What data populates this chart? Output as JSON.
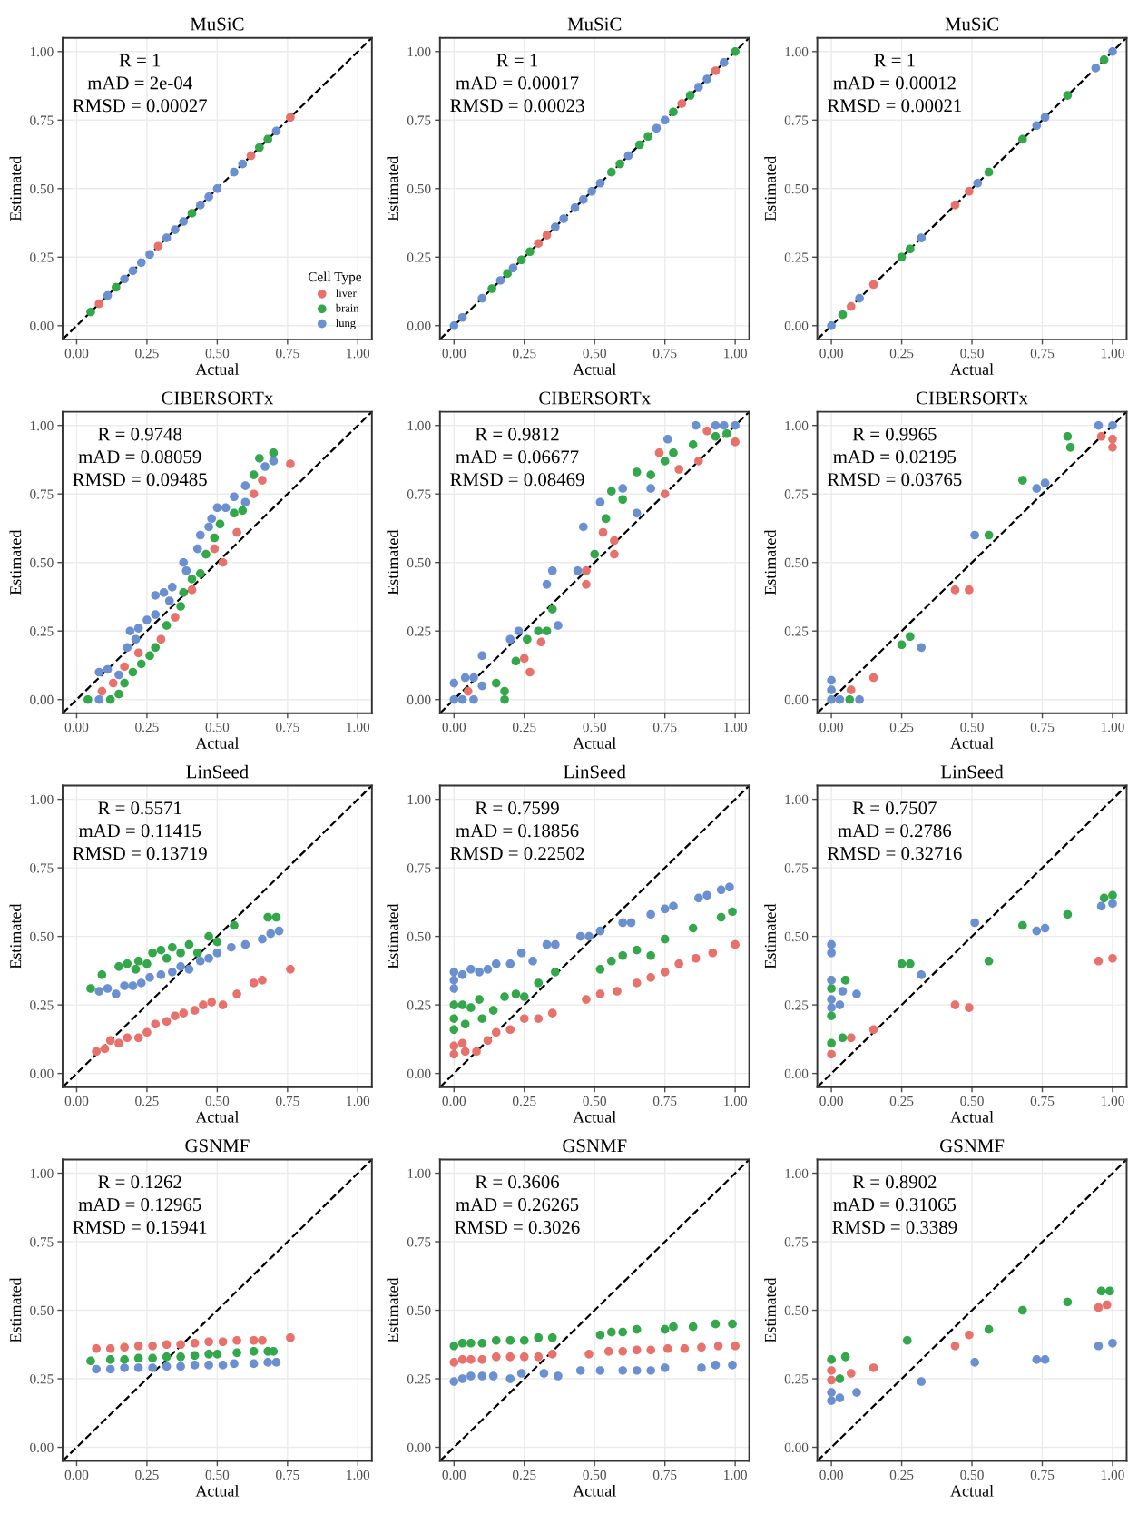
{
  "chart_data": [
    {
      "type": "scatter",
      "title": "MuSiC",
      "xlabel": "Actual",
      "ylabel": "Estimated",
      "annotations": [
        "R = 1",
        "mAD = 2e-04",
        "RMSD = 0.00027"
      ],
      "xlim": [
        -0.05,
        1.05
      ],
      "ylim": [
        -0.05,
        1.05
      ],
      "xticks": [
        {
          "value": 0,
          "label": "0.00"
        },
        {
          "value": 0.25,
          "label": "0.25"
        },
        {
          "value": 0.5,
          "label": "0.50"
        },
        {
          "value": 0.75,
          "label": "0.75"
        },
        {
          "value": 1,
          "label": "1.00"
        }
      ],
      "yticks": [
        {
          "value": 0,
          "label": "0.00"
        },
        {
          "value": 0.25,
          "label": "0.25"
        },
        {
          "value": 0.5,
          "label": "0.50"
        },
        {
          "value": 0.75,
          "label": "0.75"
        },
        {
          "value": 1,
          "label": "1.00"
        }
      ],
      "grid": true,
      "legend": "bottom right",
      "legend_title": "Cell Type",
      "series": [
        {
          "name": "liver",
          "color": "#e8716b",
          "marker": "circle",
          "x": [
            0.08,
            0.29,
            0.62,
            0.76
          ],
          "values": [
            0.08,
            0.29,
            0.62,
            0.76
          ]
        },
        {
          "name": "brain",
          "color": "#33a84b",
          "marker": "circle",
          "x": [
            0.05,
            0.14,
            0.41,
            0.65,
            0.68
          ],
          "values": [
            0.05,
            0.14,
            0.41,
            0.65,
            0.68
          ]
        },
        {
          "name": "lung",
          "color": "#6a90d2",
          "marker": "circle",
          "x": [
            0.11,
            0.17,
            0.2,
            0.23,
            0.26,
            0.32,
            0.35,
            0.38,
            0.44,
            0.47,
            0.5,
            0.56,
            0.59,
            0.71
          ],
          "values": [
            0.11,
            0.17,
            0.2,
            0.23,
            0.26,
            0.32,
            0.35,
            0.38,
            0.44,
            0.47,
            0.5,
            0.56,
            0.59,
            0.71
          ]
        },
        {
          "type": "line",
          "color": "#000000",
          "marker": "none",
          "line_style": "dashed",
          "x": [
            -0.05,
            1.05
          ],
          "values": [
            -0.05,
            1.05
          ]
        }
      ]
    },
    {
      "type": "scatter",
      "title": "MuSiC",
      "xlabel": "Actual",
      "ylabel": "Estimated",
      "annotations": [
        "R = 1",
        "mAD = 0.00017",
        "RMSD = 0.00023"
      ],
      "xlim": [
        -0.05,
        1.05
      ],
      "ylim": [
        -0.05,
        1.05
      ],
      "xticks": [
        {
          "value": 0,
          "label": "0.00"
        },
        {
          "value": 0.25,
          "label": "0.25"
        },
        {
          "value": 0.5,
          "label": "0.50"
        },
        {
          "value": 0.75,
          "label": "0.75"
        },
        {
          "value": 1,
          "label": "1.00"
        }
      ],
      "yticks": [
        {
          "value": 0,
          "label": "0.00"
        },
        {
          "value": 0.25,
          "label": "0.25"
        },
        {
          "value": 0.5,
          "label": "0.50"
        },
        {
          "value": 0.75,
          "label": "0.75"
        },
        {
          "value": 1,
          "label": "1.00"
        }
      ],
      "grid": true,
      "series": [
        {
          "color": "#e8716b",
          "marker": "circle",
          "x": [
            0.3,
            0.33,
            0.81,
            0.93
          ],
          "values": [
            0.3,
            0.33,
            0.81,
            0.93
          ]
        },
        {
          "color": "#33a84b",
          "marker": "circle",
          "x": [
            0.135,
            0.19,
            0.24,
            0.27,
            0.56,
            0.59,
            0.66,
            0.69,
            0.78,
            0.84,
            1.0
          ],
          "values": [
            0.135,
            0.19,
            0.24,
            0.27,
            0.56,
            0.59,
            0.66,
            0.69,
            0.78,
            0.84,
            1.0
          ]
        },
        {
          "color": "#6a90d2",
          "marker": "circle",
          "x": [
            0,
            0.03,
            0.1,
            0.165,
            0.21,
            0.36,
            0.39,
            0.43,
            0.46,
            0.49,
            0.52,
            0.62,
            0.72,
            0.75,
            0.87,
            0.9,
            0.96
          ],
          "values": [
            0,
            0.03,
            0.1,
            0.165,
            0.21,
            0.36,
            0.39,
            0.43,
            0.46,
            0.49,
            0.52,
            0.62,
            0.72,
            0.75,
            0.87,
            0.9,
            0.96
          ]
        },
        {
          "type": "line",
          "color": "#000000",
          "marker": "none",
          "line_style": "dashed",
          "x": [
            -0.05,
            1.05
          ],
          "values": [
            -0.05,
            1.05
          ]
        }
      ]
    },
    {
      "type": "scatter",
      "title": "MuSiC",
      "xlabel": "Actual",
      "ylabel": "Estimated",
      "annotations": [
        "R = 1",
        "mAD = 0.00012",
        "RMSD = 0.00021"
      ],
      "xlim": [
        -0.05,
        1.05
      ],
      "ylim": [
        -0.05,
        1.05
      ],
      "xticks": [
        {
          "value": 0,
          "label": "0.00"
        },
        {
          "value": 0.25,
          "label": "0.25"
        },
        {
          "value": 0.5,
          "label": "0.50"
        },
        {
          "value": 0.75,
          "label": "0.75"
        },
        {
          "value": 1,
          "label": "1.00"
        }
      ],
      "yticks": [
        {
          "value": 0,
          "label": "0.00"
        },
        {
          "value": 0.25,
          "label": "0.25"
        },
        {
          "value": 0.5,
          "label": "0.50"
        },
        {
          "value": 0.75,
          "label": "0.75"
        },
        {
          "value": 1,
          "label": "1.00"
        }
      ],
      "grid": true,
      "series": [
        {
          "color": "#e8716b",
          "marker": "circle",
          "x": [
            0.07,
            0.15,
            0.44,
            0.49
          ],
          "values": [
            0.07,
            0.15,
            0.44,
            0.49
          ]
        },
        {
          "color": "#33a84b",
          "marker": "circle",
          "x": [
            0.04,
            0.25,
            0.28,
            0.56,
            0.68,
            0.84,
            0.97
          ],
          "values": [
            0.04,
            0.25,
            0.28,
            0.56,
            0.68,
            0.84,
            0.97
          ]
        },
        {
          "color": "#6a90d2",
          "marker": "circle",
          "x": [
            0,
            0.1,
            0.32,
            0.52,
            0.73,
            0.76,
            0.94,
            1.0
          ],
          "values": [
            0,
            0.1,
            0.32,
            0.52,
            0.73,
            0.76,
            0.94,
            1.0
          ]
        },
        {
          "type": "line",
          "color": "#000000",
          "marker": "none",
          "line_style": "dashed",
          "x": [
            -0.05,
            1.05
          ],
          "values": [
            -0.05,
            1.05
          ]
        }
      ]
    },
    {
      "type": "scatter",
      "title": "CIBERSORTx",
      "xlabel": "Actual",
      "ylabel": "Estimated",
      "annotations": [
        "R = 0.9748",
        "mAD = 0.08059",
        "RMSD = 0.09485"
      ],
      "xlim": [
        -0.05,
        1.05
      ],
      "ylim": [
        -0.05,
        1.05
      ],
      "xticks": [
        {
          "value": 0,
          "label": "0.00"
        },
        {
          "value": 0.25,
          "label": "0.25"
        },
        {
          "value": 0.5,
          "label": "0.50"
        },
        {
          "value": 0.75,
          "label": "0.75"
        },
        {
          "value": 1,
          "label": "1.00"
        }
      ],
      "yticks": [
        {
          "value": 0,
          "label": "0.00"
        },
        {
          "value": 0.25,
          "label": "0.25"
        },
        {
          "value": 0.5,
          "label": "0.50"
        },
        {
          "value": 0.75,
          "label": "0.75"
        },
        {
          "value": 1,
          "label": "1.00"
        }
      ],
      "grid": true,
      "series": [
        {
          "color": "#e8716b",
          "marker": "circle",
          "x": [
            0.09,
            0.13,
            0.17,
            0.22,
            0.3,
            0.35,
            0.41,
            0.49,
            0.52,
            0.57,
            0.63,
            0.66,
            0.76
          ],
          "values": [
            0.03,
            0.06,
            0.12,
            0.17,
            0.22,
            0.3,
            0.4,
            0.55,
            0.5,
            0.61,
            0.75,
            0.8,
            0.86
          ]
        },
        {
          "color": "#33a84b",
          "marker": "circle",
          "x": [
            0.04,
            0.12,
            0.15,
            0.17,
            0.2,
            0.23,
            0.26,
            0.28,
            0.32,
            0.37,
            0.38,
            0.41,
            0.44,
            0.46,
            0.49,
            0.51,
            0.56,
            0.59,
            0.63,
            0.65,
            0.7
          ],
          "values": [
            0,
            0,
            0.02,
            0.06,
            0.1,
            0.13,
            0.16,
            0.19,
            0.27,
            0.34,
            0.39,
            0.44,
            0.46,
            0.53,
            0.59,
            0.64,
            0.68,
            0.69,
            0.82,
            0.88,
            0.9
          ]
        },
        {
          "color": "#6a90d2",
          "marker": "circle",
          "x": [
            0.08,
            0.08,
            0.11,
            0.15,
            0.18,
            0.19,
            0.21,
            0.22,
            0.25,
            0.28,
            0.28,
            0.31,
            0.33,
            0.34,
            0.38,
            0.39,
            0.43,
            0.44,
            0.47,
            0.48,
            0.5,
            0.53,
            0.56,
            0.6,
            0.6,
            0.67,
            0.7
          ],
          "values": [
            0,
            0.1,
            0.11,
            0.09,
            0.19,
            0.25,
            0.22,
            0.26,
            0.29,
            0.31,
            0.38,
            0.39,
            0.36,
            0.41,
            0.5,
            0.47,
            0.55,
            0.6,
            0.63,
            0.66,
            0.7,
            0.7,
            0.74,
            0.72,
            0.78,
            0.85,
            0.87
          ]
        },
        {
          "type": "line",
          "color": "#000000",
          "marker": "none",
          "line_style": "dashed",
          "x": [
            -0.05,
            1.05
          ],
          "values": [
            -0.05,
            1.05
          ]
        }
      ]
    },
    {
      "type": "scatter",
      "title": "CIBERSORTx",
      "xlabel": "Actual",
      "ylabel": "Estimated",
      "annotations": [
        "R = 0.9812",
        "mAD = 0.06677",
        "RMSD = 0.08469"
      ],
      "xlim": [
        -0.05,
        1.05
      ],
      "ylim": [
        -0.05,
        1.05
      ],
      "xticks": [
        {
          "value": 0,
          "label": "0.00"
        },
        {
          "value": 0.25,
          "label": "0.25"
        },
        {
          "value": 0.5,
          "label": "0.50"
        },
        {
          "value": 0.75,
          "label": "0.75"
        },
        {
          "value": 1,
          "label": "1.00"
        }
      ],
      "yticks": [
        {
          "value": 0,
          "label": "0.00"
        },
        {
          "value": 0.25,
          "label": "0.25"
        },
        {
          "value": 0.5,
          "label": "0.50"
        },
        {
          "value": 0.75,
          "label": "0.75"
        },
        {
          "value": 1,
          "label": "1.00"
        }
      ],
      "grid": true,
      "series": [
        {
          "color": "#e8716b",
          "marker": "circle",
          "x": [
            0.05,
            0.25,
            0.27,
            0.31,
            0.47,
            0.47,
            0.53,
            0.57,
            0.57,
            0.73,
            0.75,
            0.8,
            0.87,
            0.9,
            1.0
          ],
          "values": [
            0.03,
            0.15,
            0.1,
            0.21,
            0.42,
            0.47,
            0.61,
            0.53,
            0.58,
            0.9,
            0.75,
            0.84,
            0.87,
            0.98,
            0.94
          ]
        },
        {
          "color": "#33a84b",
          "marker": "circle",
          "x": [
            0.15,
            0.18,
            0.18,
            0.22,
            0.26,
            0.3,
            0.33,
            0.35,
            0.5,
            0.54,
            0.56,
            0.6,
            0.65,
            0.7,
            0.75,
            0.78,
            0.85,
            0.93,
            0.97
          ],
          "values": [
            0.06,
            0.03,
            0,
            0.14,
            0.22,
            0.25,
            0.25,
            0.33,
            0.53,
            0.66,
            0.76,
            0.73,
            0.83,
            0.82,
            0.87,
            0.9,
            0.93,
            0.96,
            0.97
          ]
        },
        {
          "color": "#6a90d2",
          "marker": "circle",
          "x": [
            0,
            0,
            0.03,
            0.04,
            0.07,
            0.07,
            0.1,
            0.1,
            0.2,
            0.23,
            0.33,
            0.35,
            0.37,
            0.44,
            0.46,
            0.52,
            0.6,
            0.65,
            0.7,
            0.76,
            0.86,
            0.93,
            0.96,
            1.0
          ],
          "values": [
            0,
            0.06,
            0,
            0.08,
            0,
            0.08,
            0.16,
            0.05,
            0.22,
            0.25,
            0.42,
            0.47,
            0.27,
            0.47,
            0.63,
            0.72,
            0.77,
            0.68,
            0.77,
            0.95,
            1.0,
            1.0,
            1.0,
            1.0
          ]
        },
        {
          "type": "line",
          "color": "#000000",
          "marker": "none",
          "line_style": "dashed",
          "x": [
            -0.05,
            1.05
          ],
          "values": [
            -0.05,
            1.05
          ]
        }
      ]
    },
    {
      "type": "scatter",
      "title": "CIBERSORTx",
      "xlabel": "Actual",
      "ylabel": "Estimated",
      "annotations": [
        "R = 0.9965",
        "mAD = 0.02195",
        "RMSD = 0.03765"
      ],
      "xlim": [
        -0.05,
        1.05
      ],
      "ylim": [
        -0.05,
        1.05
      ],
      "xticks": [
        {
          "value": 0,
          "label": "0.00"
        },
        {
          "value": 0.25,
          "label": "0.25"
        },
        {
          "value": 0.5,
          "label": "0.50"
        },
        {
          "value": 0.75,
          "label": "0.75"
        },
        {
          "value": 1,
          "label": "1.00"
        }
      ],
      "yticks": [
        {
          "value": 0,
          "label": "0.00"
        },
        {
          "value": 0.25,
          "label": "0.25"
        },
        {
          "value": 0.5,
          "label": "0.50"
        },
        {
          "value": 0.75,
          "label": "0.75"
        },
        {
          "value": 1,
          "label": "1.00"
        }
      ],
      "grid": true,
      "series": [
        {
          "color": "#e8716b",
          "marker": "circle",
          "x": [
            0.07,
            0.15,
            0.44,
            0.49,
            0.96,
            1.0,
            1.0
          ],
          "values": [
            0.035,
            0.08,
            0.4,
            0.4,
            0.96,
            0.95,
            0.92
          ]
        },
        {
          "color": "#33a84b",
          "marker": "circle",
          "x": [
            0.065,
            0.25,
            0.28,
            0.56,
            0.68,
            0.84,
            0.85
          ],
          "values": [
            0,
            0.2,
            0.23,
            0.6,
            0.8,
            0.96,
            0.92
          ]
        },
        {
          "color": "#6a90d2",
          "marker": "circle",
          "x": [
            0,
            0,
            0,
            0.03,
            0.1,
            0.32,
            0.51,
            0.73,
            0.76,
            0.95,
            1.0
          ],
          "values": [
            0,
            0.035,
            0.07,
            0,
            0,
            0.19,
            0.6,
            0.77,
            0.79,
            1.0,
            1.0
          ]
        },
        {
          "type": "line",
          "color": "#000000",
          "marker": "none",
          "line_style": "dashed",
          "x": [
            -0.05,
            1.05
          ],
          "values": [
            -0.05,
            1.05
          ]
        }
      ]
    },
    {
      "type": "scatter",
      "title": "LinSeed",
      "xlabel": "Actual",
      "ylabel": "Estimated",
      "annotations": [
        "R = 0.5571",
        "mAD = 0.11415",
        "RMSD = 0.13719"
      ],
      "xlim": [
        -0.05,
        1.05
      ],
      "ylim": [
        -0.05,
        1.05
      ],
      "xticks": [
        {
          "value": 0,
          "label": "0.00"
        },
        {
          "value": 0.25,
          "label": "0.25"
        },
        {
          "value": 0.5,
          "label": "0.50"
        },
        {
          "value": 0.75,
          "label": "0.75"
        },
        {
          "value": 1,
          "label": "1.00"
        }
      ],
      "yticks": [
        {
          "value": 0,
          "label": "0.00"
        },
        {
          "value": 0.25,
          "label": "0.25"
        },
        {
          "value": 0.5,
          "label": "0.50"
        },
        {
          "value": 0.75,
          "label": "0.75"
        },
        {
          "value": 1,
          "label": "1.00"
        }
      ],
      "grid": true,
      "series": [
        {
          "color": "#e8716b",
          "marker": "circle",
          "x": [
            0.07,
            0.1,
            0.12,
            0.15,
            0.18,
            0.22,
            0.25,
            0.28,
            0.32,
            0.35,
            0.38,
            0.42,
            0.45,
            0.48,
            0.52,
            0.57,
            0.63,
            0.66,
            0.76
          ],
          "values": [
            0.08,
            0.09,
            0.12,
            0.11,
            0.13,
            0.13,
            0.15,
            0.18,
            0.19,
            0.21,
            0.22,
            0.23,
            0.25,
            0.26,
            0.25,
            0.29,
            0.33,
            0.34,
            0.38
          ]
        },
        {
          "color": "#33a84b",
          "marker": "circle",
          "x": [
            0.05,
            0.09,
            0.15,
            0.18,
            0.21,
            0.22,
            0.25,
            0.27,
            0.3,
            0.32,
            0.34,
            0.37,
            0.4,
            0.43,
            0.47,
            0.5,
            0.56,
            0.68,
            0.71
          ],
          "values": [
            0.31,
            0.36,
            0.39,
            0.4,
            0.38,
            0.41,
            0.4,
            0.44,
            0.45,
            0.42,
            0.46,
            0.44,
            0.47,
            0.44,
            0.5,
            0.48,
            0.54,
            0.57,
            0.57
          ]
        },
        {
          "color": "#6a90d2",
          "marker": "circle",
          "x": [
            0.08,
            0.11,
            0.14,
            0.17,
            0.2,
            0.23,
            0.26,
            0.3,
            0.34,
            0.37,
            0.4,
            0.44,
            0.47,
            0.5,
            0.55,
            0.6,
            0.66,
            0.69,
            0.72
          ],
          "values": [
            0.3,
            0.31,
            0.29,
            0.32,
            0.32,
            0.33,
            0.35,
            0.36,
            0.37,
            0.39,
            0.38,
            0.41,
            0.42,
            0.44,
            0.46,
            0.47,
            0.49,
            0.51,
            0.52
          ]
        },
        {
          "type": "line",
          "color": "#000000",
          "marker": "none",
          "line_style": "dashed",
          "x": [
            -0.05,
            1.05
          ],
          "values": [
            -0.05,
            1.05
          ]
        }
      ]
    },
    {
      "type": "scatter",
      "title": "LinSeed",
      "xlabel": "Actual",
      "ylabel": "Estimated",
      "annotations": [
        "R = 0.7599",
        "mAD = 0.18856",
        "RMSD = 0.22502"
      ],
      "xlim": [
        -0.05,
        1.05
      ],
      "ylim": [
        -0.05,
        1.05
      ],
      "xticks": [
        {
          "value": 0,
          "label": "0.00"
        },
        {
          "value": 0.25,
          "label": "0.25"
        },
        {
          "value": 0.5,
          "label": "0.50"
        },
        {
          "value": 0.75,
          "label": "0.75"
        },
        {
          "value": 1,
          "label": "1.00"
        }
      ],
      "yticks": [
        {
          "value": 0,
          "label": "0.00"
        },
        {
          "value": 0.25,
          "label": "0.25"
        },
        {
          "value": 0.5,
          "label": "0.50"
        },
        {
          "value": 0.75,
          "label": "0.75"
        },
        {
          "value": 1,
          "label": "1.00"
        }
      ],
      "grid": true,
      "series": [
        {
          "color": "#e8716b",
          "marker": "circle",
          "x": [
            0,
            0,
            0.03,
            0.04,
            0.08,
            0.12,
            0.15,
            0.2,
            0.25,
            0.3,
            0.35,
            0.47,
            0.52,
            0.58,
            0.65,
            0.7,
            0.75,
            0.8,
            0.86,
            0.92,
            1.0
          ],
          "values": [
            0.07,
            0.1,
            0.11,
            0.08,
            0.08,
            0.12,
            0.15,
            0.16,
            0.2,
            0.2,
            0.22,
            0.27,
            0.29,
            0.3,
            0.33,
            0.35,
            0.37,
            0.4,
            0.42,
            0.44,
            0.47
          ]
        },
        {
          "color": "#33a84b",
          "marker": "circle",
          "x": [
            0,
            0,
            0,
            0.03,
            0.04,
            0.06,
            0.09,
            0.1,
            0.14,
            0.18,
            0.22,
            0.25,
            0.3,
            0.36,
            0.52,
            0.56,
            0.6,
            0.65,
            0.7,
            0.75,
            0.85,
            0.95,
            0.99
          ],
          "values": [
            0.25,
            0.2,
            0.16,
            0.25,
            0.18,
            0.24,
            0.27,
            0.2,
            0.23,
            0.28,
            0.29,
            0.28,
            0.33,
            0.37,
            0.38,
            0.41,
            0.43,
            0.45,
            0.43,
            0.49,
            0.53,
            0.57,
            0.59
          ]
        },
        {
          "color": "#6a90d2",
          "marker": "circle",
          "x": [
            0,
            0,
            0,
            0.03,
            0.06,
            0.09,
            0.12,
            0.15,
            0.2,
            0.24,
            0.28,
            0.33,
            0.36,
            0.45,
            0.48,
            0.52,
            0.6,
            0.63,
            0.7,
            0.75,
            0.78,
            0.87,
            0.9,
            0.95,
            0.98
          ],
          "values": [
            0.37,
            0.34,
            0.31,
            0.36,
            0.38,
            0.37,
            0.38,
            0.4,
            0.4,
            0.44,
            0.41,
            0.47,
            0.47,
            0.5,
            0.5,
            0.52,
            0.55,
            0.55,
            0.58,
            0.6,
            0.61,
            0.64,
            0.65,
            0.67,
            0.68
          ]
        },
        {
          "type": "line",
          "color": "#000000",
          "marker": "none",
          "line_style": "dashed",
          "x": [
            -0.05,
            1.05
          ],
          "values": [
            -0.05,
            1.05
          ]
        }
      ]
    },
    {
      "type": "scatter",
      "title": "LinSeed",
      "xlabel": "Actual",
      "ylabel": "Estimated",
      "annotations": [
        "R = 0.7507",
        "mAD = 0.2786",
        "RMSD = 0.32716"
      ],
      "xlim": [
        -0.05,
        1.05
      ],
      "ylim": [
        -0.05,
        1.05
      ],
      "xticks": [
        {
          "value": 0,
          "label": "0.00"
        },
        {
          "value": 0.25,
          "label": "0.25"
        },
        {
          "value": 0.5,
          "label": "0.50"
        },
        {
          "value": 0.75,
          "label": "0.75"
        },
        {
          "value": 1,
          "label": "1.00"
        }
      ],
      "yticks": [
        {
          "value": 0,
          "label": "0.00"
        },
        {
          "value": 0.25,
          "label": "0.25"
        },
        {
          "value": 0.5,
          "label": "0.50"
        },
        {
          "value": 0.75,
          "label": "0.75"
        },
        {
          "value": 1,
          "label": "1.00"
        }
      ],
      "grid": true,
      "series": [
        {
          "color": "#e8716b",
          "marker": "circle",
          "x": [
            0,
            0.07,
            0.15,
            0.44,
            0.49,
            0.95,
            1.0
          ],
          "values": [
            0.07,
            0.13,
            0.16,
            0.25,
            0.24,
            0.41,
            0.42
          ]
        },
        {
          "color": "#33a84b",
          "marker": "circle",
          "x": [
            0,
            0,
            0,
            0.04,
            0.05,
            0.25,
            0.28,
            0.56,
            0.68,
            0.84,
            0.97,
            1.0
          ],
          "values": [
            0.31,
            0.21,
            0.11,
            0.13,
            0.34,
            0.4,
            0.4,
            0.41,
            0.54,
            0.58,
            0.64,
            0.65
          ]
        },
        {
          "color": "#6a90d2",
          "marker": "circle",
          "x": [
            0,
            0,
            0,
            0,
            0,
            0.03,
            0.04,
            0.09,
            0.32,
            0.51,
            0.73,
            0.76,
            0.96,
            1.0
          ],
          "values": [
            0.47,
            0.44,
            0.34,
            0.27,
            0.24,
            0.25,
            0.3,
            0.29,
            0.36,
            0.55,
            0.52,
            0.53,
            0.61,
            0.62
          ]
        },
        {
          "type": "line",
          "color": "#000000",
          "marker": "none",
          "line_style": "dashed",
          "x": [
            -0.05,
            1.05
          ],
          "values": [
            -0.05,
            1.05
          ]
        }
      ]
    },
    {
      "type": "scatter",
      "title": "GSNMF",
      "xlabel": "Actual",
      "ylabel": "Estimated",
      "annotations": [
        "R = 0.1262",
        "mAD = 0.12965",
        "RMSD = 0.15941"
      ],
      "xlim": [
        -0.05,
        1.05
      ],
      "ylim": [
        -0.05,
        1.05
      ],
      "xticks": [
        {
          "value": 0,
          "label": "0.00"
        },
        {
          "value": 0.25,
          "label": "0.25"
        },
        {
          "value": 0.5,
          "label": "0.50"
        },
        {
          "value": 0.75,
          "label": "0.75"
        },
        {
          "value": 1,
          "label": "1.00"
        }
      ],
      "yticks": [
        {
          "value": 0,
          "label": "0.00"
        },
        {
          "value": 0.25,
          "label": "0.25"
        },
        {
          "value": 0.5,
          "label": "0.50"
        },
        {
          "value": 0.75,
          "label": "0.75"
        },
        {
          "value": 1,
          "label": "1.00"
        }
      ],
      "grid": true,
      "series": [
        {
          "color": "#e8716b",
          "marker": "circle",
          "x": [
            0.07,
            0.12,
            0.17,
            0.22,
            0.27,
            0.32,
            0.37,
            0.42,
            0.47,
            0.52,
            0.57,
            0.63,
            0.66,
            0.76
          ],
          "values": [
            0.36,
            0.36,
            0.365,
            0.37,
            0.37,
            0.375,
            0.375,
            0.38,
            0.385,
            0.385,
            0.39,
            0.39,
            0.39,
            0.4
          ]
        },
        {
          "color": "#33a84b",
          "marker": "circle",
          "x": [
            0.05,
            0.12,
            0.17,
            0.22,
            0.27,
            0.32,
            0.37,
            0.42,
            0.47,
            0.5,
            0.57,
            0.63,
            0.68,
            0.7
          ],
          "values": [
            0.315,
            0.32,
            0.32,
            0.325,
            0.325,
            0.33,
            0.33,
            0.335,
            0.34,
            0.34,
            0.345,
            0.35,
            0.35,
            0.35
          ]
        },
        {
          "color": "#6a90d2",
          "marker": "circle",
          "x": [
            0.07,
            0.12,
            0.17,
            0.22,
            0.27,
            0.32,
            0.37,
            0.42,
            0.47,
            0.52,
            0.56,
            0.63,
            0.68,
            0.71
          ],
          "values": [
            0.285,
            0.285,
            0.29,
            0.29,
            0.29,
            0.295,
            0.295,
            0.3,
            0.3,
            0.3,
            0.305,
            0.305,
            0.31,
            0.31
          ]
        },
        {
          "type": "line",
          "color": "#000000",
          "marker": "none",
          "line_style": "dashed",
          "x": [
            -0.05,
            1.05
          ],
          "values": [
            -0.05,
            1.05
          ]
        }
      ]
    },
    {
      "type": "scatter",
      "title": "GSNMF",
      "xlabel": "Actual",
      "ylabel": "Estimated",
      "annotations": [
        "R = 0.3606",
        "mAD = 0.26265",
        "RMSD = 0.3026"
      ],
      "xlim": [
        -0.05,
        1.05
      ],
      "ylim": [
        -0.05,
        1.05
      ],
      "xticks": [
        {
          "value": 0,
          "label": "0.00"
        },
        {
          "value": 0.25,
          "label": "0.25"
        },
        {
          "value": 0.5,
          "label": "0.50"
        },
        {
          "value": 0.75,
          "label": "0.75"
        },
        {
          "value": 1,
          "label": "1.00"
        }
      ],
      "yticks": [
        {
          "value": 0,
          "label": "0.00"
        },
        {
          "value": 0.25,
          "label": "0.25"
        },
        {
          "value": 0.5,
          "label": "0.50"
        },
        {
          "value": 0.75,
          "label": "0.75"
        },
        {
          "value": 1,
          "label": "1.00"
        }
      ],
      "grid": true,
      "series": [
        {
          "color": "#e8716b",
          "marker": "circle",
          "x": [
            0,
            0.03,
            0.06,
            0.1,
            0.15,
            0.2,
            0.25,
            0.3,
            0.35,
            0.48,
            0.55,
            0.6,
            0.65,
            0.7,
            0.76,
            0.82,
            0.88,
            0.94,
            1.0
          ],
          "values": [
            0.31,
            0.32,
            0.32,
            0.32,
            0.33,
            0.33,
            0.33,
            0.33,
            0.34,
            0.34,
            0.35,
            0.35,
            0.355,
            0.355,
            0.36,
            0.36,
            0.365,
            0.37,
            0.37
          ]
        },
        {
          "color": "#33a84b",
          "marker": "circle",
          "x": [
            0,
            0.03,
            0.06,
            0.1,
            0.15,
            0.2,
            0.25,
            0.3,
            0.35,
            0.52,
            0.56,
            0.6,
            0.65,
            0.75,
            0.78,
            0.85,
            0.93,
            0.99
          ],
          "values": [
            0.37,
            0.38,
            0.38,
            0.38,
            0.39,
            0.39,
            0.39,
            0.4,
            0.4,
            0.41,
            0.42,
            0.42,
            0.43,
            0.43,
            0.44,
            0.44,
            0.45,
            0.45
          ]
        },
        {
          "color": "#6a90d2",
          "marker": "circle",
          "x": [
            0,
            0.03,
            0.06,
            0.1,
            0.14,
            0.2,
            0.24,
            0.32,
            0.37,
            0.45,
            0.52,
            0.6,
            0.65,
            0.7,
            0.75,
            0.88,
            0.93,
            0.99
          ],
          "values": [
            0.24,
            0.25,
            0.26,
            0.26,
            0.26,
            0.25,
            0.27,
            0.27,
            0.26,
            0.28,
            0.28,
            0.28,
            0.28,
            0.28,
            0.29,
            0.29,
            0.3,
            0.3
          ]
        },
        {
          "type": "line",
          "color": "#000000",
          "marker": "none",
          "line_style": "dashed",
          "x": [
            -0.05,
            1.05
          ],
          "values": [
            -0.05,
            1.05
          ]
        }
      ]
    },
    {
      "type": "scatter",
      "title": "GSNMF",
      "xlabel": "Actual",
      "ylabel": "Estimated",
      "annotations": [
        "R = 0.8902",
        "mAD = 0.31065",
        "RMSD = 0.3389"
      ],
      "xlim": [
        -0.05,
        1.05
      ],
      "ylim": [
        -0.05,
        1.05
      ],
      "xticks": [
        {
          "value": 0,
          "label": "0.00"
        },
        {
          "value": 0.25,
          "label": "0.25"
        },
        {
          "value": 0.5,
          "label": "0.50"
        },
        {
          "value": 0.75,
          "label": "0.75"
        },
        {
          "value": 1,
          "label": "1.00"
        }
      ],
      "yticks": [
        {
          "value": 0,
          "label": "0.00"
        },
        {
          "value": 0.25,
          "label": "0.25"
        },
        {
          "value": 0.5,
          "label": "0.50"
        },
        {
          "value": 0.75,
          "label": "0.75"
        },
        {
          "value": 1,
          "label": "1.00"
        }
      ],
      "grid": true,
      "series": [
        {
          "color": "#e8716b",
          "marker": "circle",
          "x": [
            0,
            0,
            0.07,
            0.15,
            0.44,
            0.49,
            0.95,
            0.98
          ],
          "values": [
            0.28,
            0.245,
            0.27,
            0.29,
            0.37,
            0.41,
            0.51,
            0.52
          ]
        },
        {
          "color": "#33a84b",
          "marker": "circle",
          "x": [
            0,
            0.03,
            0.05,
            0.27,
            0.56,
            0.68,
            0.84,
            0.96,
            0.99
          ],
          "values": [
            0.32,
            0.25,
            0.33,
            0.39,
            0.43,
            0.5,
            0.53,
            0.57,
            0.57
          ]
        },
        {
          "color": "#6a90d2",
          "marker": "circle",
          "x": [
            0,
            0,
            0.03,
            0.09,
            0.32,
            0.51,
            0.73,
            0.76,
            0.95,
            1.0
          ],
          "values": [
            0.17,
            0.2,
            0.18,
            0.2,
            0.24,
            0.31,
            0.32,
            0.32,
            0.37,
            0.38
          ]
        },
        {
          "type": "line",
          "color": "#000000",
          "marker": "none",
          "line_style": "dashed",
          "x": [
            -0.05,
            1.05
          ],
          "values": [
            -0.05,
            1.05
          ]
        }
      ]
    }
  ]
}
